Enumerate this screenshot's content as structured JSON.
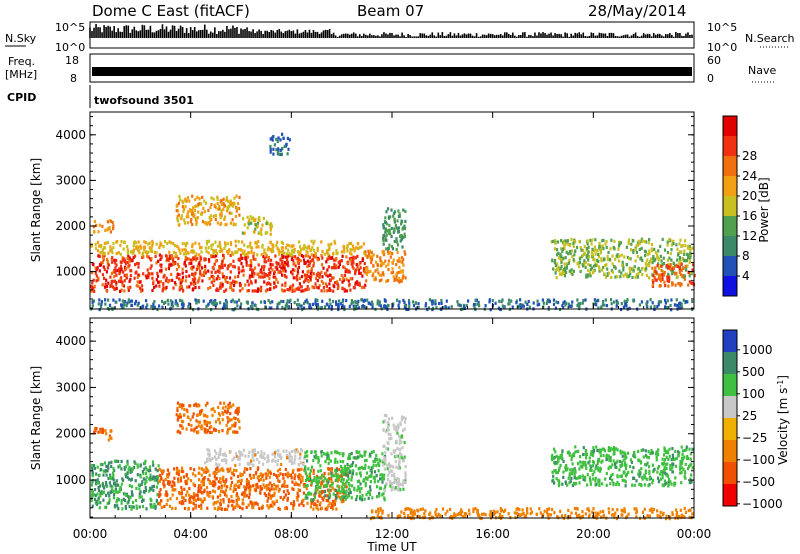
{
  "header": {
    "station": "Dome C East (fitACF)",
    "beam": "Beam 07",
    "date": "28/May/2014"
  },
  "noise_panel": {
    "left_label": "N.Sky",
    "right_label": "N.Search",
    "left_ticks": [
      "10^5",
      "10^0"
    ],
    "right_ticks": [
      "10^5",
      "10^0"
    ]
  },
  "freq_panel": {
    "left_label_1": "Freq.",
    "left_label_2": "[MHz]",
    "right_label": "Nave",
    "left_ticks": [
      "18",
      "8"
    ],
    "right_ticks": [
      "60",
      "0"
    ]
  },
  "cpid": {
    "label": "CPID",
    "value": "twofsound 3501"
  },
  "x_axis": {
    "ticks": [
      "00:00",
      "04:00",
      "08:00",
      "12:00",
      "16:00",
      "20:00",
      "00:00"
    ],
    "label": "Time UT"
  },
  "chart_data": [
    {
      "type": "heatmap",
      "title": "",
      "xlabel": "Time UT",
      "ylabel": "Slant Range [km]",
      "x_range_hours": [
        0,
        24
      ],
      "ylim": [
        180,
        4500
      ],
      "y_ticks": [
        "1000",
        "2000",
        "3000",
        "4000"
      ],
      "colorbar": {
        "label": "Power [dB]",
        "ticks": [
          "4",
          "8",
          "12",
          "16",
          "20",
          "24",
          "28"
        ],
        "colors": [
          "#1010e0",
          "#2050b8",
          "#3a8a6a",
          "#50a050",
          "#c8c020",
          "#f0a010",
          "#f07010",
          "#f03010",
          "#e00000"
        ]
      },
      "scatter_regions": [
        {
          "t0": 0.0,
          "t1": 10.9,
          "r0": 600,
          "r1": 1400,
          "value": 28
        },
        {
          "t0": 0.0,
          "t1": 10.9,
          "r0": 1400,
          "r1": 1700,
          "value": 18
        },
        {
          "t0": 0.1,
          "t1": 0.9,
          "r0": 1900,
          "r1": 2150,
          "value": 22
        },
        {
          "t0": 3.4,
          "t1": 5.9,
          "r0": 2050,
          "r1": 2700,
          "value": 20
        },
        {
          "t0": 6.0,
          "t1": 7.2,
          "r0": 1850,
          "r1": 2250,
          "value": 16
        },
        {
          "t0": 10.9,
          "t1": 12.5,
          "r0": 800,
          "r1": 1500,
          "value": 22
        },
        {
          "t0": 11.6,
          "t1": 12.5,
          "r0": 1500,
          "r1": 2450,
          "value": 10
        },
        {
          "t0": 18.3,
          "t1": 23.9,
          "r0": 900,
          "r1": 1750,
          "value": 14
        },
        {
          "t0": 22.3,
          "t1": 24.0,
          "r0": 700,
          "r1": 1200,
          "value": 26
        },
        {
          "t0": 0.0,
          "t1": 23.9,
          "r0": 200,
          "r1": 420,
          "value": 6
        },
        {
          "t0": 7.1,
          "t1": 7.9,
          "r0": 3600,
          "r1": 4050,
          "value": 6
        }
      ]
    },
    {
      "type": "heatmap",
      "title": "",
      "xlabel": "Time UT",
      "ylabel": "Slant Range [km]",
      "x_range_hours": [
        0,
        24
      ],
      "ylim": [
        180,
        4500
      ],
      "y_ticks": [
        "1000",
        "2000",
        "3000",
        "4000"
      ],
      "colorbar": {
        "label": "Velocity [m s^-1]",
        "ticks": [
          "1000",
          "500",
          "100",
          "25",
          "−25",
          "−100",
          "−500",
          "−1000"
        ],
        "colors": [
          "#2040c0",
          "#3a8a6a",
          "#40c040",
          "#c8c8c8",
          "#f0b000",
          "#f08000",
          "#f05000",
          "#f00000"
        ]
      },
      "scatter_regions": [
        {
          "t0": 0.0,
          "t1": 2.7,
          "r0": 400,
          "r1": 1450,
          "value": 100
        },
        {
          "t0": 2.7,
          "t1": 10.2,
          "r0": 400,
          "r1": 1300,
          "value": -100
        },
        {
          "t0": 4.5,
          "t1": 8.5,
          "r0": 1350,
          "r1": 1700,
          "value": 0
        },
        {
          "t0": 8.5,
          "t1": 11.7,
          "r0": 600,
          "r1": 1650,
          "value": 80
        },
        {
          "t0": 0.1,
          "t1": 0.9,
          "r0": 1900,
          "r1": 2150,
          "value": -100
        },
        {
          "t0": 3.4,
          "t1": 5.9,
          "r0": 2050,
          "r1": 2700,
          "value": -100
        },
        {
          "t0": 11.6,
          "t1": 12.5,
          "r0": 800,
          "r1": 2450,
          "value": 30
        },
        {
          "t0": 18.3,
          "t1": 23.9,
          "r0": 900,
          "r1": 1750,
          "value": 80
        },
        {
          "t0": 11.0,
          "t1": 23.9,
          "r0": 200,
          "r1": 420,
          "value": -60
        }
      ]
    },
    {
      "type": "line",
      "title": "",
      "ylabel": "N.Sky",
      "description_values": {
        "y_scale": "log",
        "ylim": [
          1,
          100000
        ]
      }
    }
  ]
}
